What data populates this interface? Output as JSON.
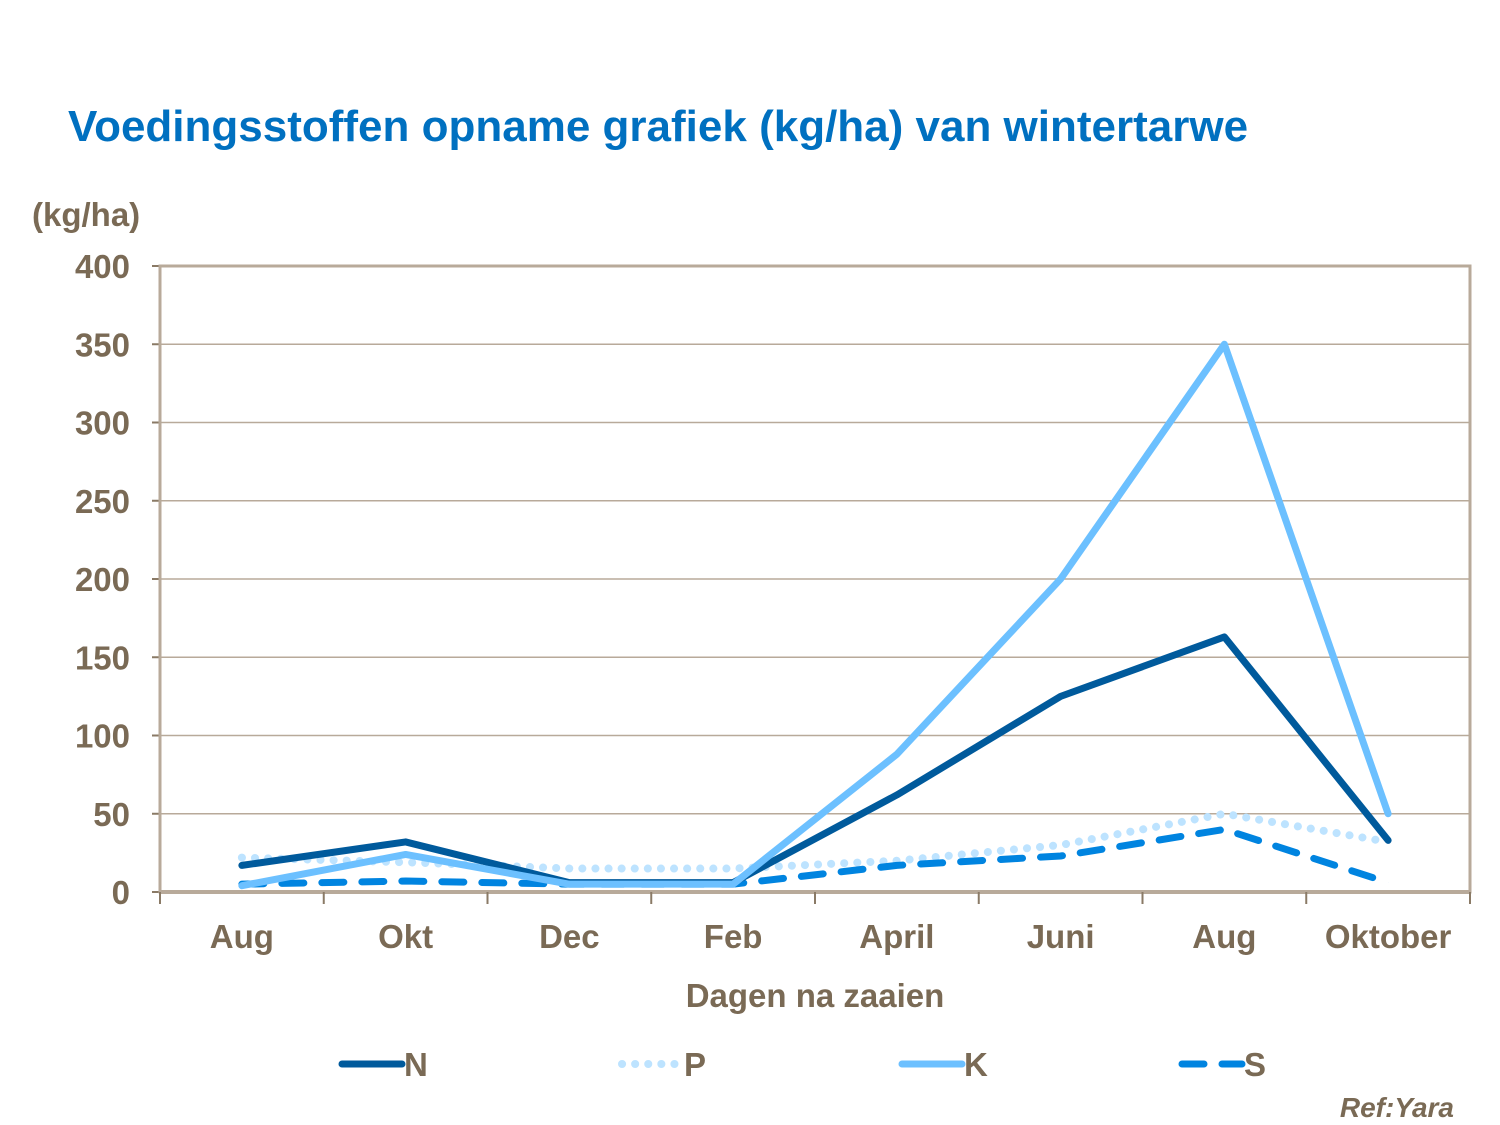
{
  "chart_data": {
    "type": "line",
    "title": "Voedingsstoffen opname grafiek (kg/ha) van wintertarwe",
    "ylabel": "(kg/ha)",
    "xlabel": "Dagen na zaaien",
    "categories": [
      "Aug",
      "Okt",
      "Dec",
      "Feb",
      "April",
      "Juni",
      "Aug",
      "Oktober"
    ],
    "ylim": [
      0,
      400
    ],
    "yticks": [
      0,
      50,
      100,
      150,
      200,
      250,
      300,
      350,
      400
    ],
    "grid": true,
    "legend": "bottom",
    "series": [
      {
        "name": "N",
        "color": "#005a9c",
        "style": "solid",
        "values": [
          17,
          32,
          6,
          6,
          62,
          125,
          163,
          33
        ]
      },
      {
        "name": "P",
        "color": "#bde3ff",
        "style": "dotted",
        "values": [
          22,
          19,
          15,
          15,
          20,
          30,
          50,
          32
        ]
      },
      {
        "name": "K",
        "color": "#6cc0ff",
        "style": "solid",
        "values": [
          4,
          24,
          5,
          5,
          88,
          200,
          350,
          50
        ]
      },
      {
        "name": "S",
        "color": "#0084e0",
        "style": "dashed",
        "values": [
          5,
          7,
          5,
          5,
          17,
          23,
          40,
          6
        ]
      }
    ]
  },
  "reference": "Ref:Yara"
}
